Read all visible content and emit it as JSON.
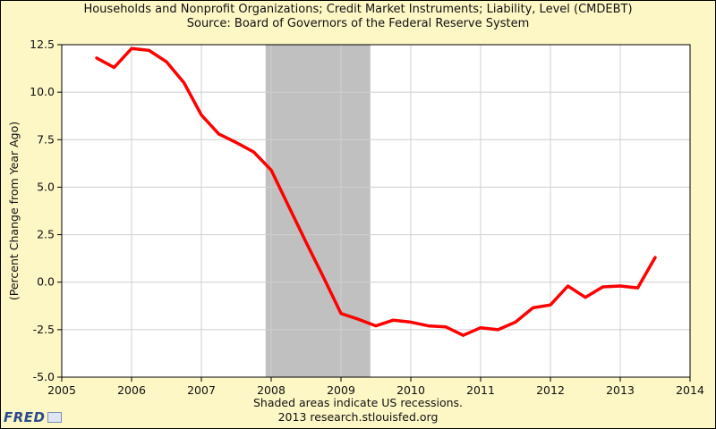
{
  "chart_data": {
    "type": "line",
    "title": "Households and Nonprofit Organizations; Credit Market Instruments; Liability, Level (CMDEBT)",
    "subtitle": "Source: Board of Governors of the Federal Reserve System",
    "xlabel": "",
    "ylabel": "(Percent Change from Year Ago)",
    "xlim": [
      2005,
      2014
    ],
    "ylim": [
      -5.0,
      12.5
    ],
    "x_ticks": [
      "2005",
      "2006",
      "2007",
      "2008",
      "2009",
      "2010",
      "2011",
      "2012",
      "2013",
      "2014"
    ],
    "y_ticks": [
      "-5.0",
      "-2.5",
      "0.0",
      "2.5",
      "5.0",
      "7.5",
      "10.0",
      "12.5"
    ],
    "grid": true,
    "recession": {
      "start": 2007.92,
      "end": 2009.42
    },
    "series": [
      {
        "name": "CMDEBT",
        "color": "#ff0000",
        "x": [
          2005.5,
          2005.75,
          2006.0,
          2006.25,
          2006.5,
          2006.75,
          2007.0,
          2007.25,
          2007.5,
          2007.75,
          2008.0,
          2008.25,
          2008.5,
          2008.75,
          2009.0,
          2009.25,
          2009.5,
          2009.75,
          2010.0,
          2010.25,
          2010.5,
          2010.75,
          2011.0,
          2011.25,
          2011.5,
          2011.75,
          2012.0,
          2012.25,
          2012.5,
          2012.75,
          2013.0,
          2013.25,
          2013.5
        ],
        "values": [
          11.8,
          11.3,
          12.3,
          12.2,
          11.6,
          10.5,
          8.8,
          7.8,
          7.35,
          6.85,
          5.9,
          4.0,
          2.1,
          0.25,
          -1.65,
          -1.95,
          -2.3,
          -2.0,
          -2.1,
          -2.3,
          -2.35,
          -2.8,
          -2.4,
          -2.5,
          -2.1,
          -1.35,
          -1.2,
          -0.2,
          -0.8,
          -0.25,
          -0.2,
          -0.3,
          1.3
        ]
      }
    ]
  },
  "footer": {
    "note": "Shaded areas indicate US recessions.",
    "credit": "2013 research.stlouisfed.org",
    "logo": "FRED"
  },
  "colors": {
    "background": "#fdf6c5",
    "plot_area": "#ffffff",
    "recession_shade": "#c0c0c0",
    "grid": "#cfcfcf",
    "line": "#ff0000"
  }
}
